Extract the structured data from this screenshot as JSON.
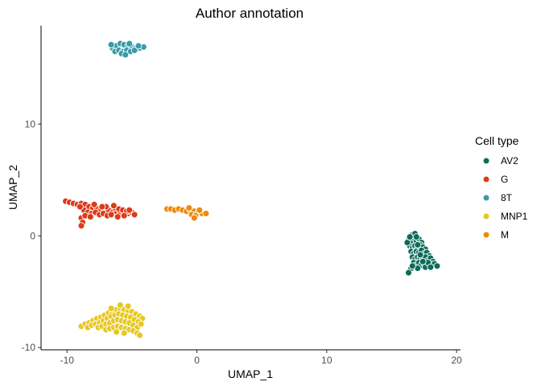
{
  "chart_data": {
    "type": "scatter",
    "title": "Author annotation",
    "xlabel": "UMAP_1",
    "ylabel": "UMAP_2",
    "xlim": [
      -12,
      20.3
    ],
    "ylim": [
      -10.2,
      18.8
    ],
    "x_ticks": [
      -10,
      0,
      10,
      20
    ],
    "y_ticks": [
      -10,
      0,
      10
    ],
    "x_tick_labels": [
      "-10",
      "0",
      "10",
      "20"
    ],
    "y_tick_labels": [
      "-10",
      "0",
      "10"
    ],
    "grid": false,
    "legend_position": "right",
    "legend_title": "Cell type",
    "series": [
      {
        "name": "AV2",
        "color": "#0e6b5a",
        "points": [
          [
            16.3,
            -0.4
          ],
          [
            16.5,
            -0.6
          ],
          [
            16.7,
            -0.2
          ],
          [
            16.9,
            -0.5
          ],
          [
            17.1,
            -0.3
          ],
          [
            17.3,
            -0.6
          ],
          [
            16.6,
            0.1
          ],
          [
            16.8,
            0.2
          ],
          [
            16.4,
            -0.9
          ],
          [
            16.6,
            -1.1
          ],
          [
            16.8,
            -0.9
          ],
          [
            17.0,
            -1.0
          ],
          [
            17.2,
            -0.8
          ],
          [
            17.4,
            -1.0
          ],
          [
            17.6,
            -1.2
          ],
          [
            16.5,
            -1.4
          ],
          [
            16.7,
            -1.6
          ],
          [
            16.9,
            -1.4
          ],
          [
            17.1,
            -1.5
          ],
          [
            17.3,
            -1.3
          ],
          [
            17.5,
            -1.6
          ],
          [
            17.7,
            -1.5
          ],
          [
            17.9,
            -1.8
          ],
          [
            16.6,
            -1.9
          ],
          [
            16.8,
            -2.1
          ],
          [
            17.0,
            -1.9
          ],
          [
            17.2,
            -2.0
          ],
          [
            17.4,
            -2.1
          ],
          [
            17.6,
            -1.9
          ],
          [
            17.8,
            -2.2
          ],
          [
            18.0,
            -2.0
          ],
          [
            18.2,
            -2.3
          ],
          [
            16.7,
            -2.4
          ],
          [
            16.9,
            -2.6
          ],
          [
            17.1,
            -2.4
          ],
          [
            17.3,
            -2.6
          ],
          [
            17.5,
            -2.5
          ],
          [
            17.7,
            -2.7
          ],
          [
            17.9,
            -2.5
          ],
          [
            18.1,
            -2.6
          ],
          [
            18.3,
            -2.5
          ],
          [
            18.5,
            -2.7
          ],
          [
            16.5,
            -2.9
          ],
          [
            16.3,
            -3.3
          ],
          [
            17.0,
            -2.9
          ],
          [
            17.6,
            -2.8
          ],
          [
            16.2,
            -0.6
          ],
          [
            16.4,
            -0.1
          ],
          [
            17.0,
            -0.8
          ],
          [
            17.8,
            -2.4
          ],
          [
            16.9,
            -0.1
          ],
          [
            17.2,
            -1.7
          ],
          [
            16.6,
            -2.7
          ],
          [
            18.0,
            -2.8
          ],
          [
            17.4,
            -2.3
          ]
        ]
      },
      {
        "name": "G",
        "color": "#dd3a1a",
        "points": [
          [
            -10.1,
            3.1
          ],
          [
            -9.8,
            3.0
          ],
          [
            -9.5,
            2.9
          ],
          [
            -9.2,
            2.8
          ],
          [
            -8.9,
            2.9
          ],
          [
            -8.6,
            2.8
          ],
          [
            -8.3,
            2.6
          ],
          [
            -8.0,
            2.5
          ],
          [
            -7.7,
            2.4
          ],
          [
            -7.4,
            2.3
          ],
          [
            -7.1,
            2.2
          ],
          [
            -6.8,
            2.3
          ],
          [
            -6.5,
            2.1
          ],
          [
            -6.2,
            2.2
          ],
          [
            -5.9,
            2.0
          ],
          [
            -5.6,
            2.1
          ],
          [
            -5.3,
            2.0
          ],
          [
            -5.0,
            2.1
          ],
          [
            -4.8,
            1.9
          ],
          [
            -8.7,
            2.3
          ],
          [
            -8.4,
            2.1
          ],
          [
            -8.1,
            2.0
          ],
          [
            -7.8,
            2.1
          ],
          [
            -7.5,
            1.9
          ],
          [
            -7.2,
            2.0
          ],
          [
            -6.9,
            1.8
          ],
          [
            -6.6,
            1.9
          ],
          [
            -6.3,
            2.5
          ],
          [
            -6.0,
            2.4
          ],
          [
            -5.7,
            2.3
          ],
          [
            -5.4,
            2.2
          ],
          [
            -8.9,
            1.6
          ],
          [
            -8.8,
            1.2
          ],
          [
            -8.9,
            0.9
          ],
          [
            -8.6,
            1.8
          ],
          [
            -8.2,
            1.7
          ],
          [
            -7.0,
            2.6
          ],
          [
            -6.4,
            2.7
          ],
          [
            -5.2,
            2.3
          ],
          [
            -5.6,
            1.8
          ],
          [
            -9.0,
            2.6
          ],
          [
            -7.9,
            2.8
          ],
          [
            -6.1,
            1.7
          ],
          [
            -7.3,
            2.6
          ]
        ]
      },
      {
        "name": "8T",
        "color": "#3a9aab",
        "points": [
          [
            -6.5,
            16.8
          ],
          [
            -6.2,
            17.0
          ],
          [
            -5.9,
            17.2
          ],
          [
            -5.6,
            17.1
          ],
          [
            -5.3,
            17.0
          ],
          [
            -5.0,
            16.9
          ],
          [
            -4.7,
            16.8
          ],
          [
            -4.4,
            16.8
          ],
          [
            -4.1,
            16.9
          ],
          [
            -6.3,
            16.5
          ],
          [
            -6.0,
            16.6
          ],
          [
            -5.7,
            16.5
          ],
          [
            -5.4,
            16.6
          ],
          [
            -5.1,
            16.5
          ],
          [
            -4.8,
            16.6
          ],
          [
            -5.8,
            16.3
          ],
          [
            -5.5,
            16.2
          ],
          [
            -6.6,
            17.1
          ],
          [
            -5.2,
            17.2
          ],
          [
            -4.5,
            17.0
          ]
        ]
      },
      {
        "name": "MNP1",
        "color": "#e6c822",
        "points": [
          [
            -8.9,
            -8.1
          ],
          [
            -8.6,
            -7.9
          ],
          [
            -8.3,
            -7.8
          ],
          [
            -8.0,
            -7.6
          ],
          [
            -7.7,
            -7.4
          ],
          [
            -7.4,
            -7.3
          ],
          [
            -7.1,
            -7.1
          ],
          [
            -6.8,
            -6.9
          ],
          [
            -6.5,
            -6.8
          ],
          [
            -6.2,
            -6.6
          ],
          [
            -5.9,
            -6.5
          ],
          [
            -5.6,
            -6.6
          ],
          [
            -5.3,
            -6.7
          ],
          [
            -5.0,
            -6.8
          ],
          [
            -4.7,
            -7.0
          ],
          [
            -4.4,
            -7.2
          ],
          [
            -4.2,
            -7.4
          ],
          [
            -8.4,
            -8.2
          ],
          [
            -8.1,
            -8.0
          ],
          [
            -7.8,
            -7.9
          ],
          [
            -7.5,
            -7.8
          ],
          [
            -7.2,
            -7.6
          ],
          [
            -6.9,
            -7.4
          ],
          [
            -6.6,
            -7.2
          ],
          [
            -6.3,
            -7.1
          ],
          [
            -6.0,
            -7.0
          ],
          [
            -5.7,
            -7.1
          ],
          [
            -5.4,
            -7.2
          ],
          [
            -5.1,
            -7.3
          ],
          [
            -4.8,
            -7.5
          ],
          [
            -4.5,
            -7.7
          ],
          [
            -7.6,
            -8.2
          ],
          [
            -7.3,
            -8.1
          ],
          [
            -7.0,
            -7.9
          ],
          [
            -6.7,
            -7.8
          ],
          [
            -6.4,
            -7.6
          ],
          [
            -6.1,
            -7.5
          ],
          [
            -5.8,
            -7.6
          ],
          [
            -5.5,
            -7.7
          ],
          [
            -5.2,
            -7.8
          ],
          [
            -4.9,
            -8.0
          ],
          [
            -4.6,
            -8.2
          ],
          [
            -7.0,
            -8.4
          ],
          [
            -6.7,
            -8.3
          ],
          [
            -6.4,
            -8.2
          ],
          [
            -6.1,
            -8.1
          ],
          [
            -5.8,
            -8.2
          ],
          [
            -5.5,
            -8.3
          ],
          [
            -5.2,
            -8.4
          ],
          [
            -4.9,
            -8.5
          ],
          [
            -4.6,
            -8.7
          ],
          [
            -4.4,
            -8.9
          ],
          [
            -6.2,
            -8.6
          ],
          [
            -5.6,
            -8.7
          ],
          [
            -4.3,
            -7.9
          ],
          [
            -5.9,
            -6.2
          ],
          [
            -6.6,
            -6.5
          ],
          [
            -5.3,
            -6.3
          ]
        ]
      },
      {
        "name": "M",
        "color": "#ec8a0c",
        "points": [
          [
            -2.3,
            2.4
          ],
          [
            -2.0,
            2.4
          ],
          [
            -1.7,
            2.3
          ],
          [
            -1.4,
            2.4
          ],
          [
            -1.1,
            2.3
          ],
          [
            -0.8,
            2.2
          ],
          [
            -0.5,
            2.3
          ],
          [
            -0.2,
            2.2
          ],
          [
            0.1,
            2.1
          ],
          [
            0.4,
            2.0
          ],
          [
            0.7,
            2.0
          ],
          [
            -0.4,
            1.9
          ],
          [
            -0.1,
            1.8
          ],
          [
            0.2,
            2.3
          ],
          [
            -0.6,
            2.5
          ],
          [
            -0.2,
            1.6
          ]
        ]
      }
    ]
  }
}
